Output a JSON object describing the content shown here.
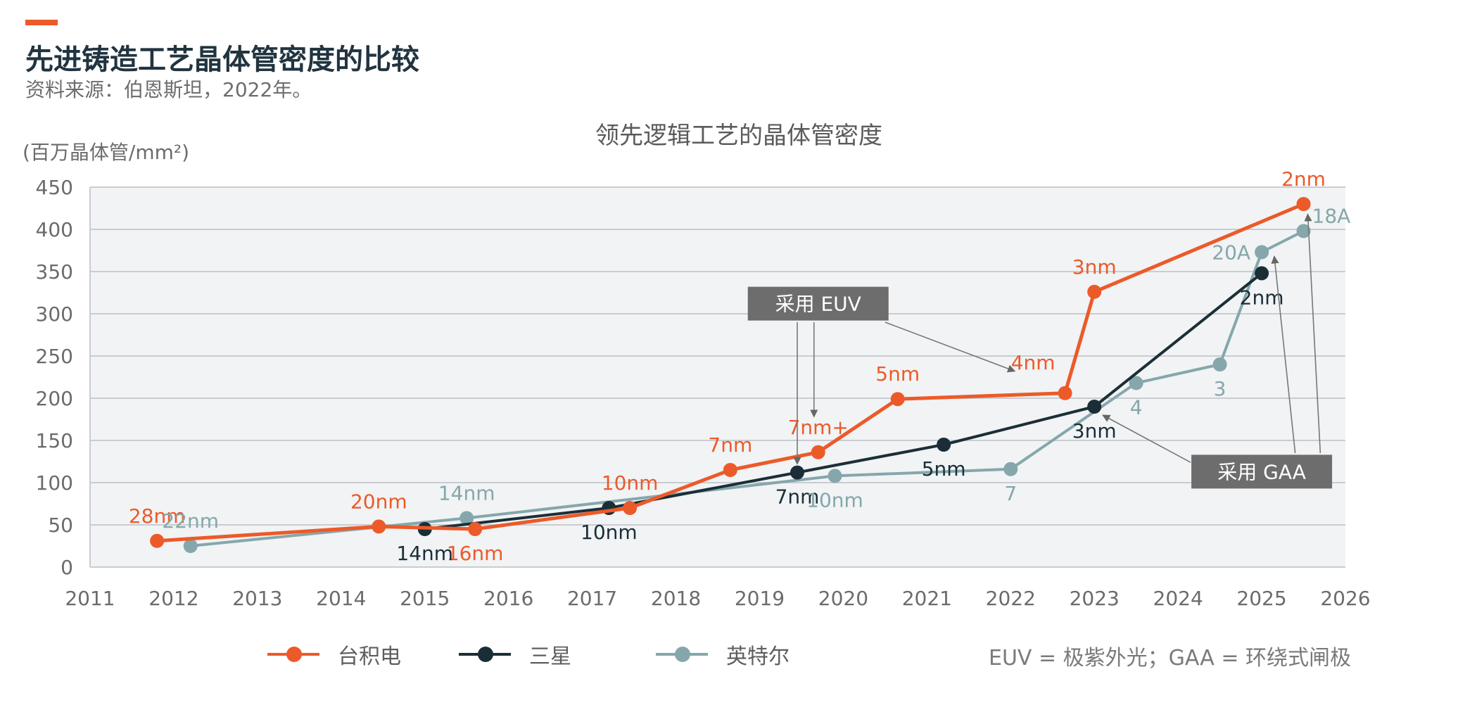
{
  "header": {
    "title": "先进铸造工艺晶体管密度的比较",
    "source": "资料来源：伯恩斯坦，2022年。"
  },
  "chart_data": {
    "type": "line",
    "title": "领先逻辑工艺的晶体管密度",
    "ylabel": "(百万晶体管/mm²)",
    "xlabel": "",
    "xlim": [
      2011,
      2026
    ],
    "ylim": [
      0,
      450
    ],
    "x_ticks": [
      "2011",
      "2012",
      "2013",
      "2014",
      "2015",
      "2016",
      "2017",
      "2018",
      "2019",
      "2020",
      "2021",
      "2022",
      "2023",
      "2024",
      "2025",
      "2026"
    ],
    "y_ticks": [
      "0",
      "50",
      "100",
      "150",
      "200",
      "250",
      "300",
      "350",
      "400",
      "450"
    ],
    "grid": true,
    "legend_position": "bottom",
    "series": [
      {
        "name": "台积电",
        "color": "#ec5a29",
        "line_width": 5,
        "points": [
          {
            "x": 2011.8,
            "y": 31,
            "label": "28nm",
            "label_pos": "above"
          },
          {
            "x": 2014.45,
            "y": 48,
            "label": "20nm",
            "label_pos": "above"
          },
          {
            "x": 2015.6,
            "y": 45,
            "label": "16nm",
            "label_pos": "below"
          },
          {
            "x": 2017.45,
            "y": 70,
            "label": "10nm",
            "label_pos": "above"
          },
          {
            "x": 2018.65,
            "y": 115,
            "label": "7nm",
            "label_pos": "above"
          },
          {
            "x": 2019.7,
            "y": 136,
            "label": "7nm+",
            "label_pos": "above"
          },
          {
            "x": 2020.65,
            "y": 199,
            "label": "5nm",
            "label_pos": "above"
          },
          {
            "x": 2022.65,
            "y": 206,
            "label": "4nm",
            "label_pos": "aboveleft"
          },
          {
            "x": 2023.0,
            "y": 326,
            "label": "3nm",
            "label_pos": "above"
          },
          {
            "x": 2025.5,
            "y": 430,
            "label": "2nm",
            "label_pos": "above"
          }
        ]
      },
      {
        "name": "三星",
        "color": "#1b2e38",
        "line_width": 4,
        "points": [
          {
            "x": 2015.0,
            "y": 45,
            "label": "14nm",
            "label_pos": "below"
          },
          {
            "x": 2017.2,
            "y": 70,
            "label": "10nm",
            "label_pos": "below"
          },
          {
            "x": 2019.45,
            "y": 112,
            "label": "7nm",
            "label_pos": "below"
          },
          {
            "x": 2021.2,
            "y": 145,
            "label": "5nm",
            "label_pos": "below"
          },
          {
            "x": 2023.0,
            "y": 190,
            "label": "3nm",
            "label_pos": "below"
          },
          {
            "x": 2025.0,
            "y": 348,
            "label": "2nm",
            "label_pos": "below"
          }
        ]
      },
      {
        "name": "英特尔",
        "color": "#85a7ab",
        "line_width": 4,
        "points": [
          {
            "x": 2012.2,
            "y": 25,
            "label": "22nm",
            "label_pos": "above"
          },
          {
            "x": 2015.5,
            "y": 58,
            "label": "14nm",
            "label_pos": "above"
          },
          {
            "x": 2019.9,
            "y": 108,
            "label": "10nm",
            "label_pos": "below"
          },
          {
            "x": 2022.0,
            "y": 116,
            "label": "7",
            "label_pos": "below"
          },
          {
            "x": 2023.5,
            "y": 218,
            "label": "4",
            "label_pos": "below"
          },
          {
            "x": 2024.5,
            "y": 240,
            "label": "3",
            "label_pos": "below"
          },
          {
            "x": 2025.0,
            "y": 373,
            "label": "20A",
            "label_pos": "left"
          },
          {
            "x": 2025.5,
            "y": 398,
            "label": "18A",
            "label_pos": "right"
          }
        ]
      }
    ],
    "annotations": [
      {
        "text": "采用 EUV",
        "box_center": [
          2019.7,
          312
        ],
        "arrows": [
          {
            "from": [
              2019.45,
              290
            ],
            "to": [
              2019.45,
              122
            ]
          },
          {
            "from": [
              2019.65,
              290
            ],
            "to": [
              2019.65,
              178
            ]
          },
          {
            "from": [
              2020.5,
              290
            ],
            "to": [
              2022.05,
              232
            ]
          }
        ]
      },
      {
        "text": "采用 GAA",
        "box_center": [
          2025.0,
          113
        ],
        "arrows": [
          {
            "from": [
              2024.15,
              124
            ],
            "to": [
              2023.1,
              180
            ]
          },
          {
            "from": [
              2025.4,
              135
            ],
            "to": [
              2025.15,
              368
            ]
          },
          {
            "from": [
              2025.7,
              135
            ],
            "to": [
              2025.55,
              418
            ]
          }
        ]
      }
    ],
    "annotation_box_color": "#6d6d6d",
    "annotation_text_color": "#ffffff",
    "note": "EUV = 极紫外光；GAA = 环绕式闸极"
  },
  "legend": {
    "items": [
      {
        "label": "台积电",
        "color": "#ec5a29"
      },
      {
        "label": "三星",
        "color": "#1b2e38"
      },
      {
        "label": "英特尔",
        "color": "#85a7ab"
      }
    ],
    "note": "EUV = 极紫外光；GAA = 环绕式闸极"
  }
}
